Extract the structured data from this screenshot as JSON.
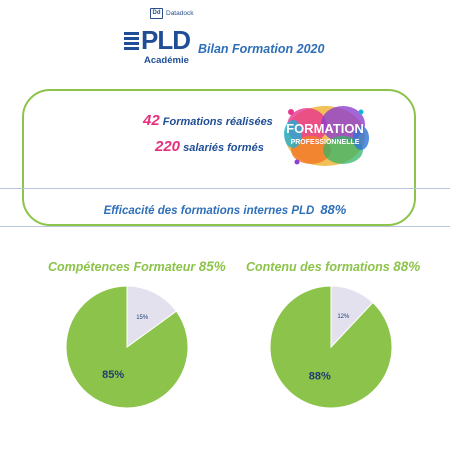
{
  "header": {
    "datadock": {
      "badge": "Dd",
      "name": "Datadock"
    },
    "logo": {
      "word": "PLD",
      "sub": "Académie"
    },
    "title": "Bilan Formation 2020"
  },
  "stats": {
    "formations_count": "42",
    "formations_label": "Formations réalisées",
    "salaries_count": "220",
    "salaries_label": "salariés formés"
  },
  "badge_image": {
    "line1": "FORMATION",
    "line2": "PROFESSIONNELLE"
  },
  "efficacite": {
    "label": "Efficacité des formations internes PLD",
    "value": "88%"
  },
  "colors": {
    "green": "#8cc34a",
    "lavender": "#e4e1ef",
    "navy": "#1f4e96",
    "pink": "#e62f7c",
    "blue": "#2f6fb8"
  },
  "chart_data": [
    {
      "type": "pie",
      "title": "Compétences Formateur",
      "title_value": "85%",
      "slices": [
        {
          "value": 85,
          "label": "85%",
          "color": "#8cc34a"
        },
        {
          "value": 15,
          "label": "15%",
          "color": "#e4e1ef"
        }
      ]
    },
    {
      "type": "pie",
      "title": "Contenu des formations",
      "title_value": "88%",
      "slices": [
        {
          "value": 88,
          "label": "88%",
          "color": "#8cc34a"
        },
        {
          "value": 12,
          "label": "12%",
          "color": "#e4e1ef"
        }
      ]
    }
  ]
}
